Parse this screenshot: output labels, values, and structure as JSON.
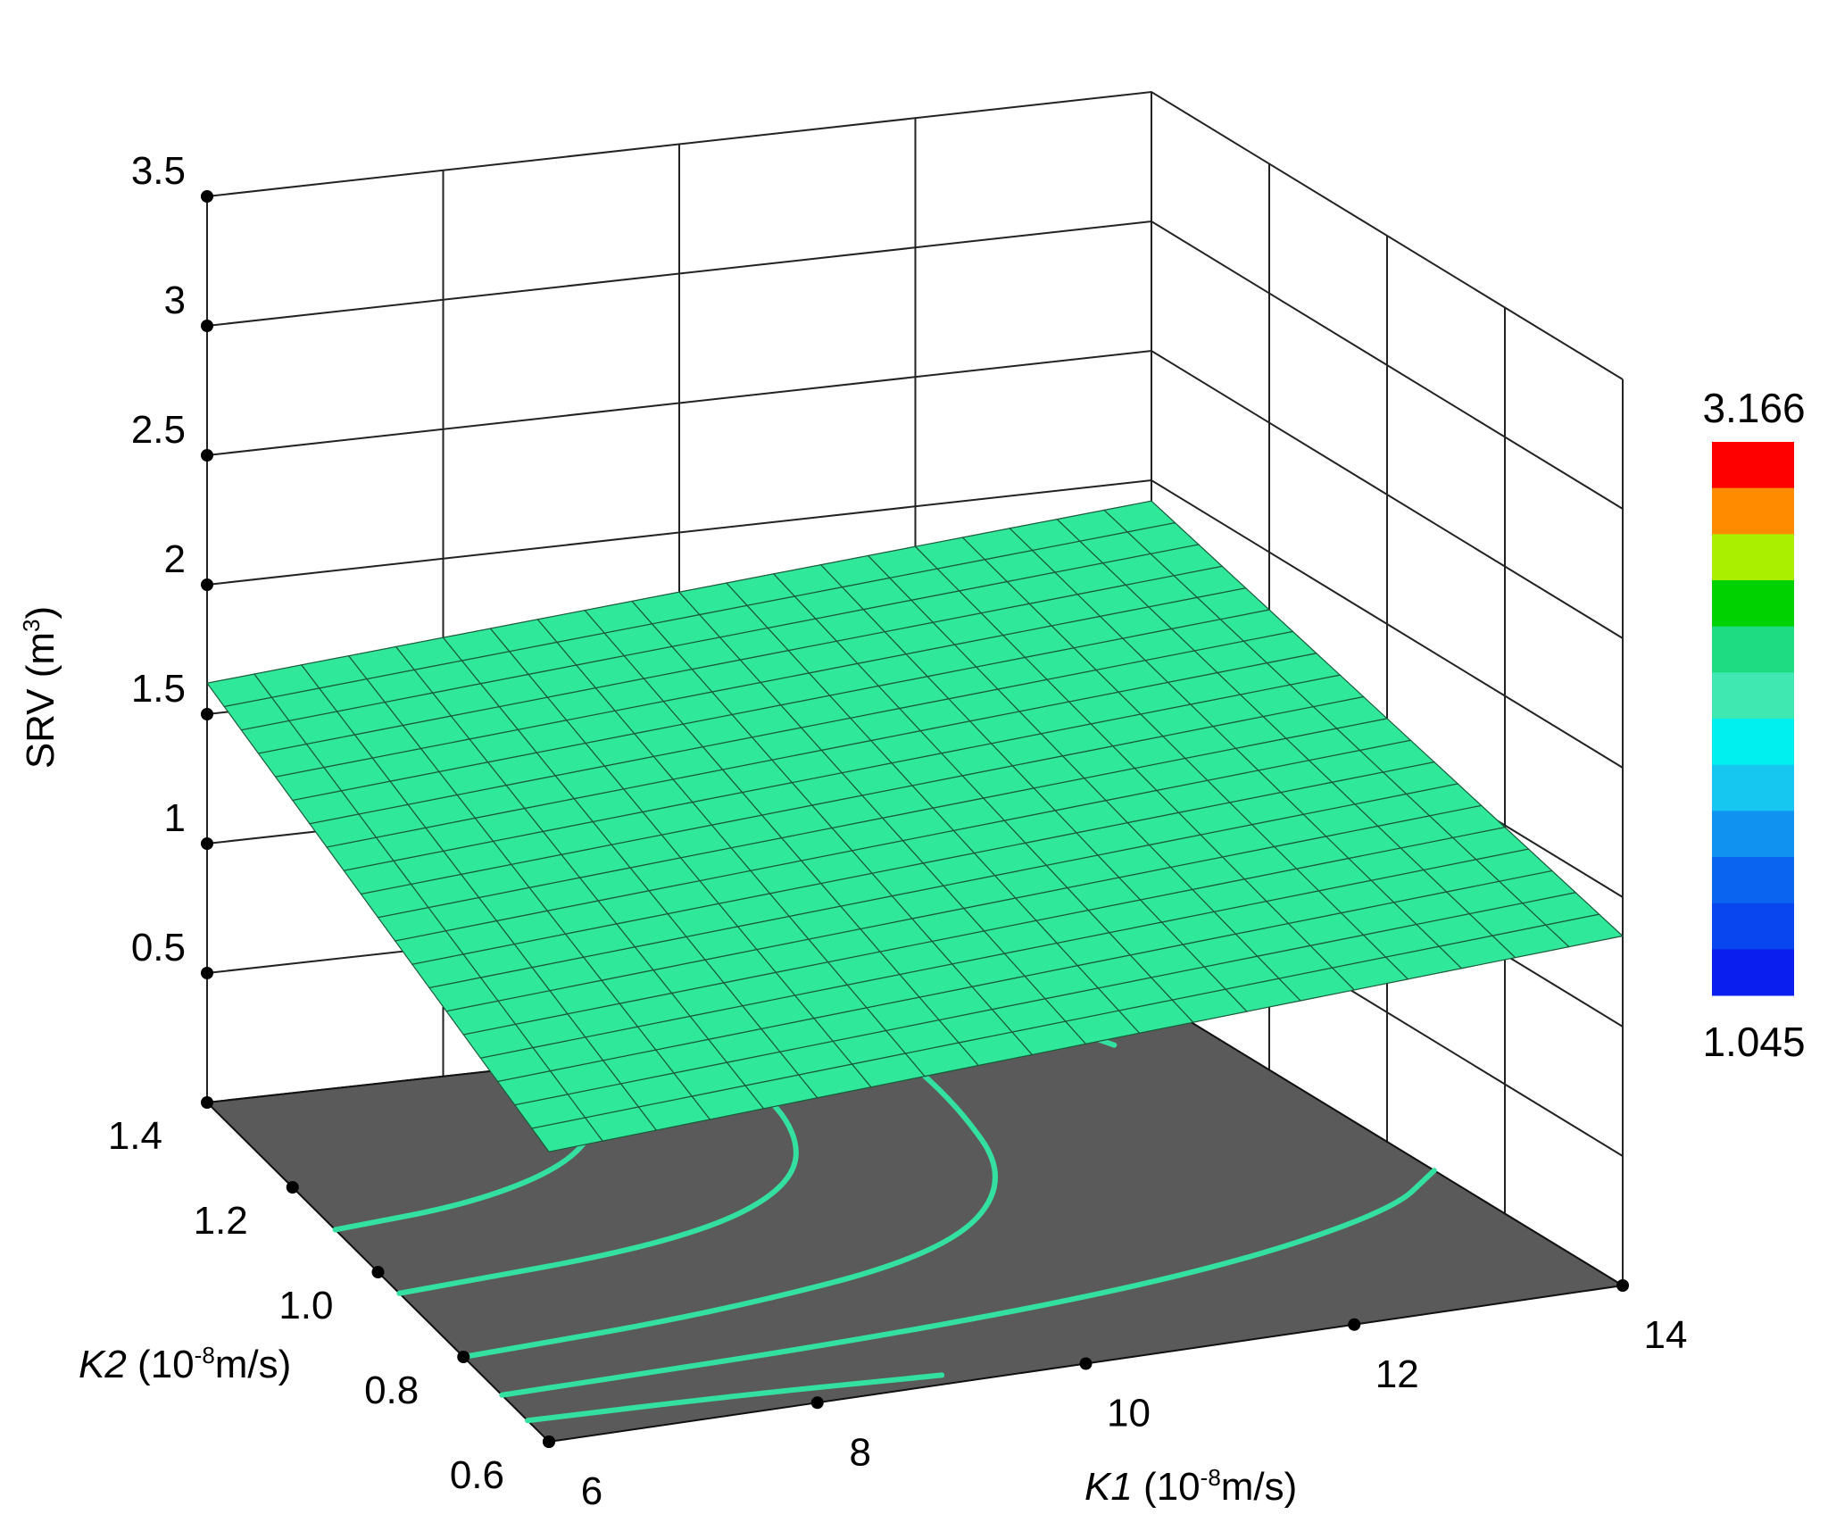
{
  "chart_data": {
    "type": "surface",
    "xlabel": {
      "italic": "K1",
      "pre": " (10",
      "sup": "-8",
      "post": "m/s)"
    },
    "ylabel": {
      "italic": "K2",
      "pre": " (10",
      "sup": "-8",
      "post": "m/s)"
    },
    "zlabel": {
      "pre": "SRV (m",
      "sup": "3",
      "post": ")"
    },
    "x_ticks": [
      "6",
      "8",
      "10",
      "12",
      "14"
    ],
    "y_ticks": [
      "0.6",
      "0.8",
      "1.0",
      "1.2",
      "1.4"
    ],
    "z_ticks": [
      "0.5",
      "1",
      "1.5",
      "2",
      "2.5",
      "3",
      "3.5"
    ],
    "xlim": [
      6,
      14
    ],
    "ylim": [
      0.6,
      1.4
    ],
    "zlim": [
      0,
      3.5
    ],
    "surface": {
      "description_values": "SRV plane over K1 x K2 grid (corner values in m^3)",
      "corners": {
        "k1_6_k2_1.4": 1.62,
        "k1_6_k2_0.6": 1.12,
        "k1_14_k2_0.6": 1.35,
        "k1_14_k2_1.4": 1.92
      },
      "grid_divisions": 20,
      "color": "#2fe89a"
    },
    "floor": {
      "color": "#5a5a5a",
      "contour_color": "#33e0a0"
    },
    "colorbar": {
      "max_label": "3.166",
      "min_label": "1.045",
      "colors": [
        "#ff0000",
        "#ff8c00",
        "#aaee00",
        "#00d200",
        "#1edc82",
        "#3ee8b0",
        "#00f0f0",
        "#16c8f0",
        "#1092f0",
        "#0a64f0",
        "#0a46f0",
        "#0a1ef0"
      ]
    }
  }
}
